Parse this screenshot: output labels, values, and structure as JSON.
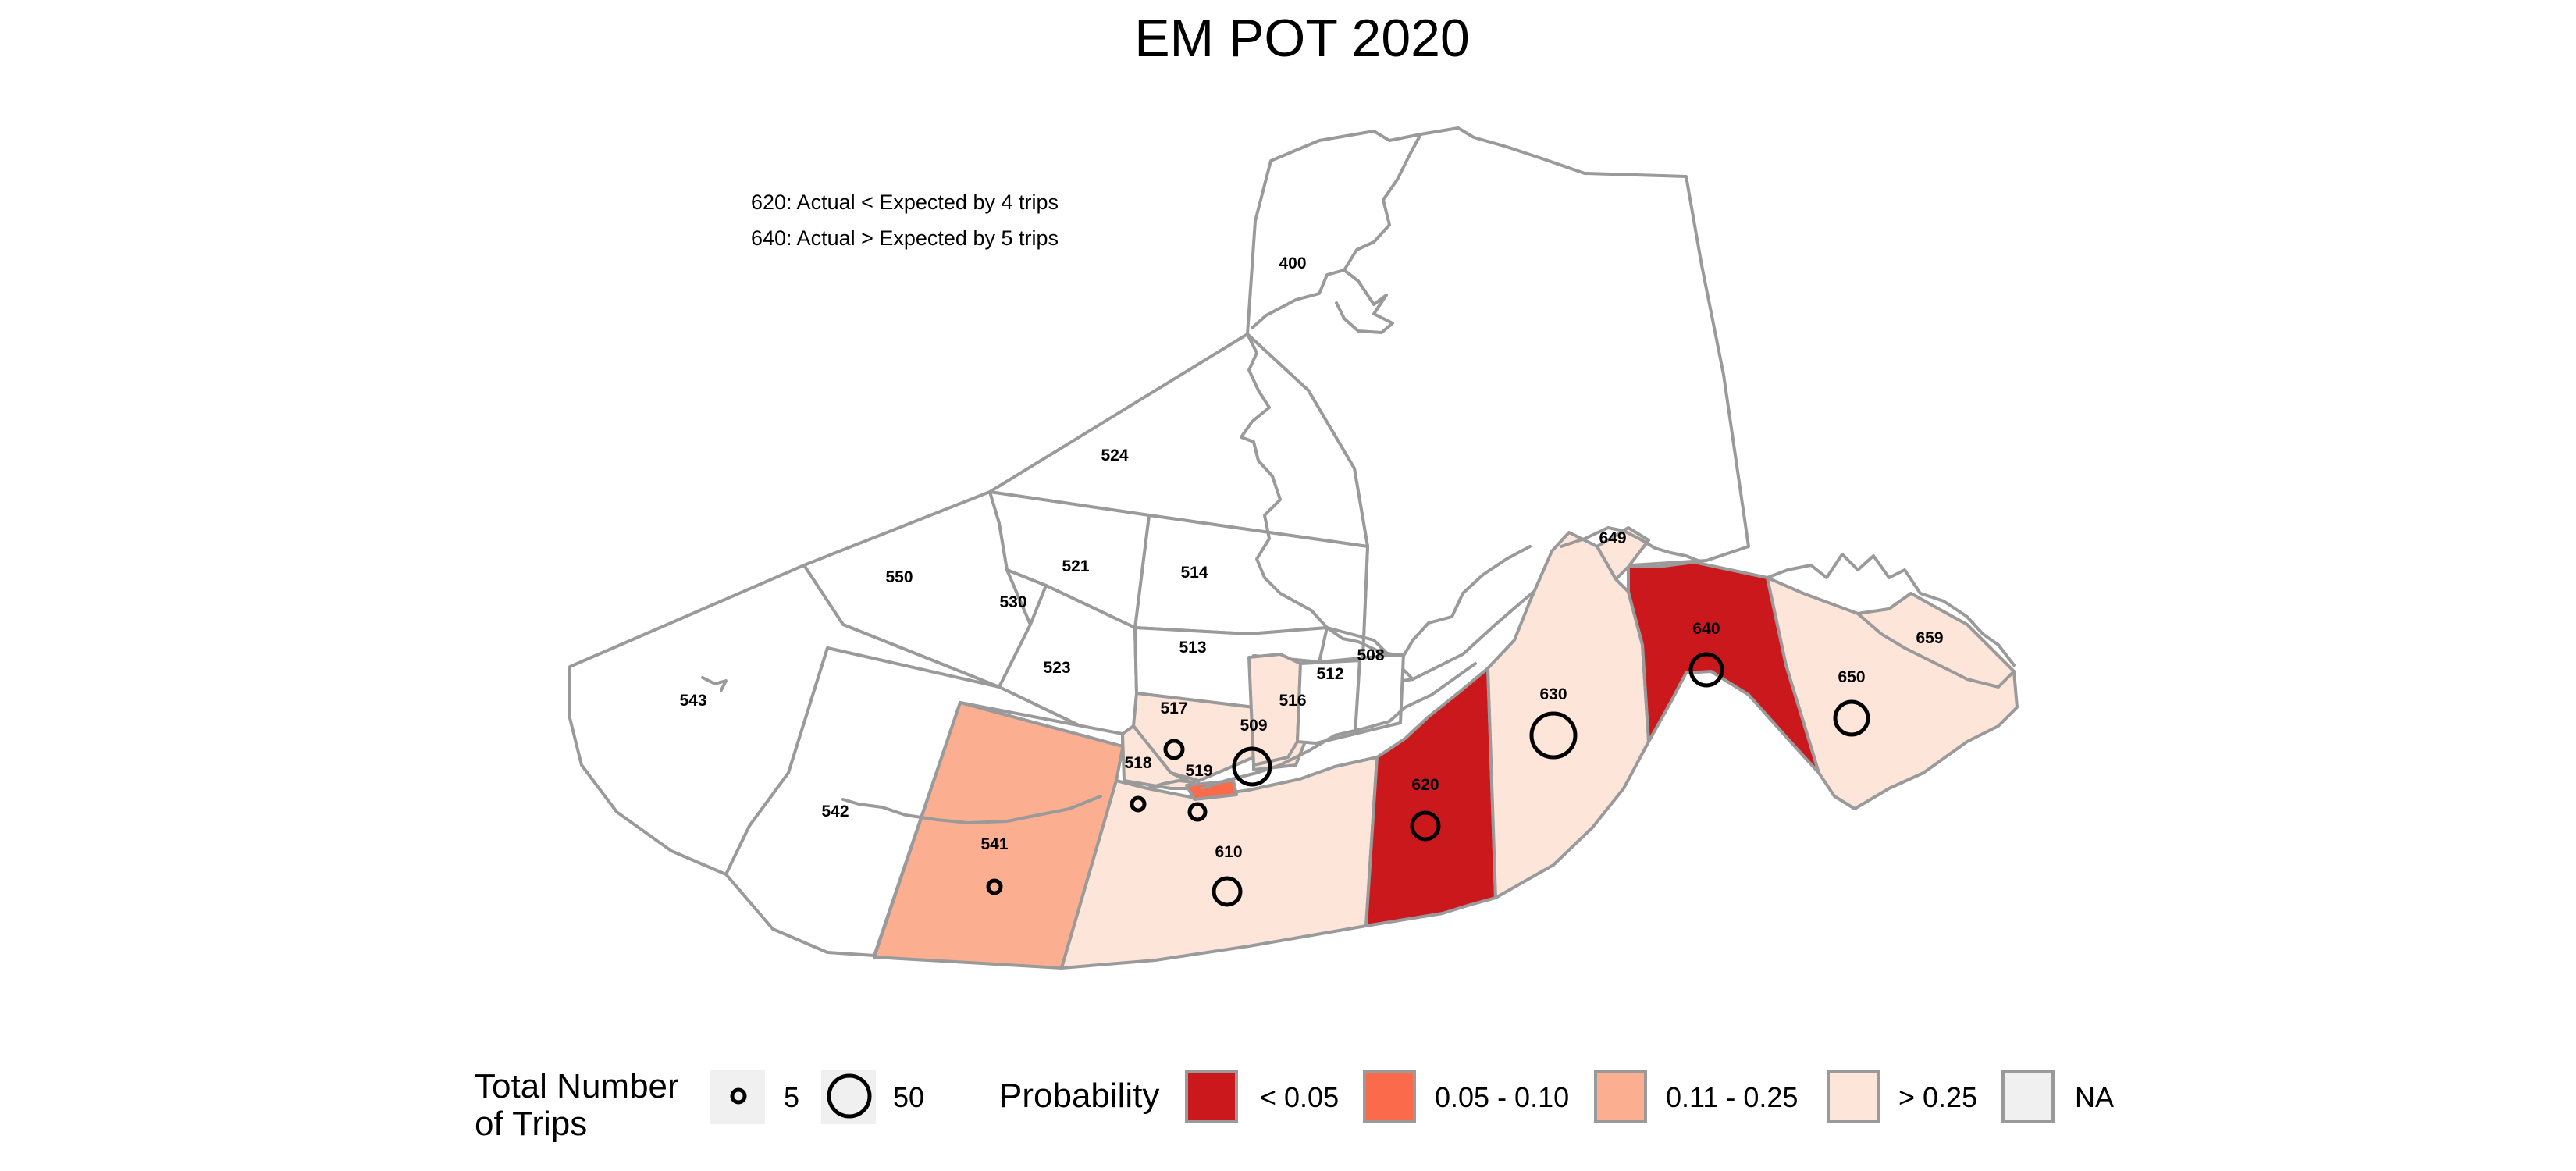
{
  "title": "EM POT 2020",
  "notes": [
    "620: Actual < Expected by 4 trips",
    "640: Actual > Expected by 5 trips"
  ],
  "colors": {
    "lt_0_05": "#cb181d",
    "p_0_05_0_10": "#fb6a4a",
    "p_0_11_0_25": "#fcae91",
    "gt_0_25": "#fee5d9",
    "na": "#f0f0f0",
    "no_data": "#ffffff",
    "border": "#9a9a9a"
  },
  "areas": [
    {
      "id": "400",
      "category": "none"
    },
    {
      "id": "524",
      "category": "none"
    },
    {
      "id": "514",
      "category": "none"
    },
    {
      "id": "550",
      "category": "none"
    },
    {
      "id": "521",
      "category": "none"
    },
    {
      "id": "530",
      "category": "none"
    },
    {
      "id": "523",
      "category": "none"
    },
    {
      "id": "513",
      "category": "none"
    },
    {
      "id": "543",
      "category": "none"
    },
    {
      "id": "542",
      "category": "none"
    },
    {
      "id": "541",
      "category": "p_0_11_0_25",
      "trips_shown": true
    },
    {
      "id": "610",
      "category": "gt_0_25",
      "trips_shown": true
    },
    {
      "id": "517",
      "category": "gt_0_25",
      "trips_shown": true
    },
    {
      "id": "518",
      "category": "gt_0_25",
      "trips_shown": true
    },
    {
      "id": "519",
      "category": "p_0_05_0_10",
      "trips_shown": true
    },
    {
      "id": "509",
      "category": "gt_0_25",
      "trips_shown": true
    },
    {
      "id": "516",
      "category": "gt_0_25"
    },
    {
      "id": "512",
      "category": "none"
    },
    {
      "id": "508",
      "category": "none"
    },
    {
      "id": "620",
      "category": "lt_0_05",
      "trips_shown": true
    },
    {
      "id": "630",
      "category": "gt_0_25",
      "trips_shown": true
    },
    {
      "id": "640",
      "category": "lt_0_05",
      "trips_shown": true
    },
    {
      "id": "649",
      "category": "gt_0_25"
    },
    {
      "id": "650",
      "category": "gt_0_25",
      "trips_shown": true
    },
    {
      "id": "659",
      "category": "gt_0_25"
    }
  ],
  "trips_legend": {
    "title_line1": "Total Number",
    "title_line2": "of Trips",
    "items": [
      {
        "label": "5",
        "value": 5
      },
      {
        "label": "50",
        "value": 50
      }
    ]
  },
  "probability_legend": {
    "title": "Probability",
    "items": [
      {
        "label": "< 0.05",
        "color": "#cb181d"
      },
      {
        "label": "0.05 - 0.10",
        "color": "#fb6a4a"
      },
      {
        "label": "0.11 - 0.25",
        "color": "#fcae91"
      },
      {
        "label": "> 0.25",
        "color": "#fee5d9"
      },
      {
        "label": "NA",
        "color": "#f0f0f0"
      }
    ]
  }
}
